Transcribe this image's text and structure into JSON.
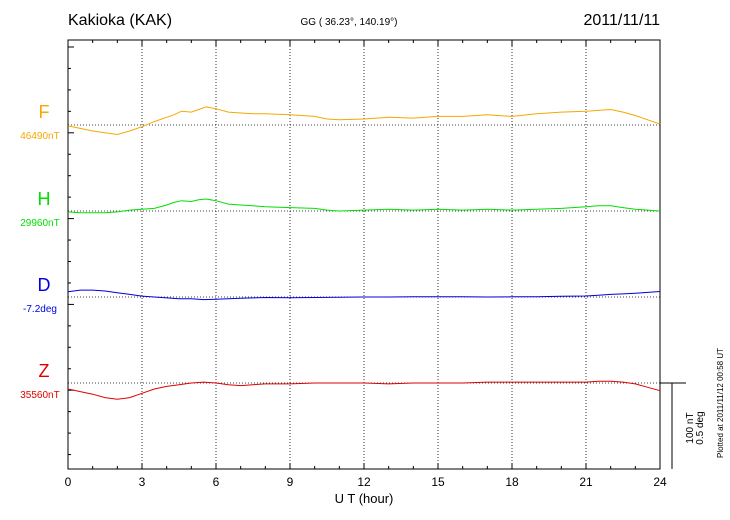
{
  "header": {
    "station": "Kakioka (KAK)",
    "coords": "GG ( 36.23°, 140.19°)",
    "date": "2011/11/11"
  },
  "footer": {
    "plotted": "Plotted at 2011/11/12 00:58 UT"
  },
  "scale": {
    "line1": "100 nT",
    "line2": "0.5 deg"
  },
  "chart_data": {
    "type": "line",
    "xlabel": "U T (hour)",
    "xlim": [
      0,
      24
    ],
    "xticks": [
      "0",
      "3",
      "6",
      "9",
      "12",
      "15",
      "18",
      "21",
      "24"
    ],
    "series": [
      {
        "name": "F",
        "baseline_label": "46490nT",
        "color": "#f5a800",
        "unit": "nT",
        "baseline": 46490,
        "x": [
          0,
          0.5,
          1,
          1.5,
          2,
          2.5,
          3,
          3.5,
          4,
          4.3,
          4.6,
          5,
          5.3,
          5.6,
          6,
          6.5,
          7,
          7.5,
          8,
          9,
          10,
          10.5,
          11,
          12,
          13,
          14,
          15,
          16,
          17,
          18,
          19,
          20,
          21,
          21.5,
          22,
          22.5,
          23,
          23.5,
          24
        ],
        "values": [
          46489,
          46486,
          46483,
          46481,
          46479,
          46483,
          46488,
          46494,
          46499,
          46502,
          46506,
          46505,
          46508,
          46511,
          46509,
          46505,
          46504,
          46503,
          46503,
          46502,
          46500,
          46497,
          46496,
          46497,
          46499,
          46498,
          46500,
          46500,
          46502,
          46500,
          46503,
          46505,
          46506,
          46507,
          46508,
          46505,
          46501,
          46496,
          46491
        ]
      },
      {
        "name": "H",
        "baseline_label": "29960nT",
        "color": "#00e000",
        "unit": "nT",
        "baseline": 29960,
        "x": [
          0,
          0.5,
          1,
          1.5,
          2,
          2.5,
          3,
          3.5,
          4,
          4.3,
          4.6,
          5,
          5.3,
          5.6,
          6,
          6.5,
          7,
          7.5,
          8,
          9,
          10,
          10.5,
          11,
          12,
          13,
          14,
          15,
          16,
          17,
          18,
          19,
          20,
          21,
          21.5,
          22,
          22.5,
          23,
          23.5,
          24
        ],
        "values": [
          29959,
          29958,
          29958,
          29958,
          29959,
          29961,
          29962,
          29963,
          29967,
          29970,
          29972,
          29971,
          29973,
          29974,
          29972,
          29968,
          29967,
          29966,
          29965,
          29964,
          29963,
          29961,
          29960,
          29961,
          29962,
          29961,
          29962,
          29961,
          29962,
          29961,
          29962,
          29963,
          29965,
          29966,
          29966,
          29964,
          29962,
          29961,
          29960
        ]
      },
      {
        "name": "D",
        "baseline_label": "-7.2deg",
        "color": "#0000e0",
        "unit": "deg",
        "baseline": -7.2,
        "x": [
          0,
          0.5,
          1,
          1.5,
          2,
          2.5,
          3,
          3.5,
          4,
          4.5,
          5,
          5.5,
          6,
          6.5,
          7,
          7.5,
          8,
          9,
          10,
          11,
          12,
          13,
          14,
          15,
          16,
          17,
          18,
          19,
          20,
          21,
          21.5,
          22,
          22.5,
          23,
          23.5,
          24
        ],
        "values": [
          -7.17,
          -7.16,
          -7.16,
          -7.165,
          -7.175,
          -7.185,
          -7.195,
          -7.2,
          -7.205,
          -7.21,
          -7.21,
          -7.215,
          -7.213,
          -7.21,
          -7.207,
          -7.205,
          -7.203,
          -7.204,
          -7.203,
          -7.202,
          -7.2,
          -7.2,
          -7.199,
          -7.198,
          -7.199,
          -7.2,
          -7.199,
          -7.198,
          -7.196,
          -7.194,
          -7.19,
          -7.185,
          -7.182,
          -7.178,
          -7.173,
          -7.168
        ]
      },
      {
        "name": "Z",
        "baseline_label": "35560nT",
        "color": "#e00000",
        "unit": "nT",
        "baseline": 35560,
        "x": [
          0,
          0.5,
          1,
          1.5,
          2,
          2.5,
          3,
          3.5,
          4,
          4.5,
          5,
          5.5,
          6,
          6.5,
          7,
          7.5,
          8,
          9,
          10,
          11,
          12,
          13,
          14,
          15,
          16,
          17,
          18,
          19,
          20,
          21,
          21.5,
          22,
          22.5,
          23,
          23.5,
          24
        ],
        "values": [
          35553,
          35550,
          35547,
          35543,
          35541,
          35543,
          35548,
          35553,
          35556,
          35558,
          35560,
          35561,
          35560,
          35558,
          35557,
          35558,
          35559,
          35559,
          35560,
          35560,
          35560,
          35559,
          35560,
          35560,
          35560,
          35561,
          35561,
          35561,
          35561,
          35561,
          35562,
          35562,
          35561,
          35559,
          35555,
          35551
        ]
      }
    ]
  }
}
